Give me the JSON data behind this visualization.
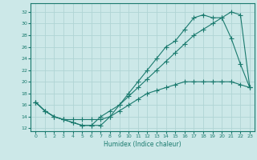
{
  "bg_color": "#cce8e8",
  "grid_color": "#b0d4d4",
  "line_color": "#1a7a6e",
  "xlabel": "Humidex (Indice chaleur)",
  "xlim": [
    -0.5,
    23.5
  ],
  "ylim": [
    11.5,
    33.5
  ],
  "xticks": [
    0,
    1,
    2,
    3,
    4,
    5,
    6,
    7,
    8,
    9,
    10,
    11,
    12,
    13,
    14,
    15,
    16,
    17,
    18,
    19,
    20,
    21,
    22,
    23
  ],
  "yticks": [
    12,
    14,
    16,
    18,
    20,
    22,
    24,
    26,
    28,
    30,
    32
  ],
  "line1_x": [
    0,
    1,
    2,
    3,
    4,
    5,
    6,
    7,
    8,
    9,
    10,
    11,
    12,
    13,
    14,
    15,
    16,
    17,
    18,
    19,
    20,
    21,
    22,
    23
  ],
  "line1_y": [
    16.5,
    15,
    14,
    13.5,
    13,
    12.5,
    12.5,
    12.5,
    14,
    16,
    18,
    20,
    22,
    24,
    26,
    27,
    29,
    31,
    31.5,
    31,
    31,
    27.5,
    23,
    19
  ],
  "line2_x": [
    0,
    1,
    2,
    3,
    4,
    5,
    6,
    7,
    8,
    9,
    10,
    11,
    12,
    13,
    14,
    15,
    16,
    17,
    18,
    19,
    20,
    21,
    22,
    23
  ],
  "line2_y": [
    16.5,
    15,
    14,
    13.5,
    13,
    12.5,
    12.5,
    14,
    15,
    16,
    17.5,
    19,
    20.5,
    22,
    23.5,
    25,
    26.5,
    28,
    29,
    30,
    31,
    32,
    31.5,
    19
  ],
  "line3_x": [
    0,
    1,
    2,
    3,
    4,
    5,
    6,
    7,
    8,
    9,
    10,
    11,
    12,
    13,
    14,
    15,
    16,
    17,
    18,
    19,
    20,
    21,
    22,
    23
  ],
  "line3_y": [
    16.5,
    15,
    14,
    13.5,
    13.5,
    13.5,
    13.5,
    13.5,
    14,
    15,
    16,
    17,
    18,
    18.5,
    19,
    19.5,
    20,
    20,
    20,
    20,
    20,
    20,
    19.5,
    19
  ]
}
